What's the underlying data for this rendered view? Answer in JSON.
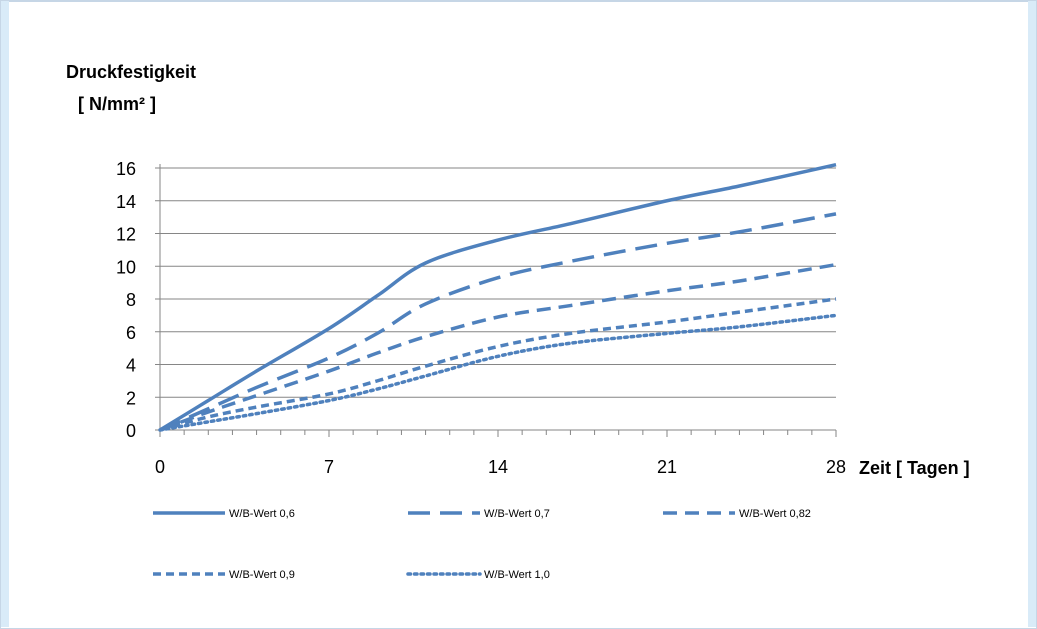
{
  "chart_data": {
    "type": "line",
    "title": "",
    "ylabel_line1": "Druckfestigkeit",
    "ylabel_line2": "[ N/mm² ]",
    "xlabel": "Zeit [ Tagen ]",
    "xlim": [
      0,
      28
    ],
    "ylim": [
      0,
      16
    ],
    "xticks": [
      0,
      7,
      14,
      21,
      28
    ],
    "yticks": [
      0,
      2,
      4,
      6,
      8,
      10,
      12,
      14,
      16
    ],
    "grid": "horizontal",
    "legend": "bottom",
    "color": "#4f81bd",
    "series": [
      {
        "name": "W/B-Wert 0,6",
        "dash": "solid",
        "x": [
          0,
          2,
          4,
          7,
          9,
          11,
          14,
          17,
          21,
          24,
          28
        ],
        "y": [
          0,
          1.8,
          3.6,
          6.2,
          8.2,
          10.2,
          11.6,
          12.6,
          14.0,
          14.9,
          16.2
        ]
      },
      {
        "name": "W/B-Wert 0,7",
        "dash": "longdash",
        "x": [
          0,
          2,
          4,
          7,
          9,
          11,
          14,
          17,
          21,
          24,
          28
        ],
        "y": [
          0,
          1.3,
          2.6,
          4.4,
          5.9,
          7.7,
          9.3,
          10.3,
          11.4,
          12.1,
          13.2
        ]
      },
      {
        "name": "W/B-Wert 0,82",
        "dash": "dash",
        "x": [
          0,
          2,
          4,
          7,
          9,
          11,
          14,
          17,
          21,
          24,
          28
        ],
        "y": [
          0,
          1.1,
          2.1,
          3.6,
          4.7,
          5.7,
          6.9,
          7.6,
          8.5,
          9.1,
          10.1
        ]
      },
      {
        "name": "W/B-Wert 0,9",
        "dash": "shortdash",
        "x": [
          0,
          2,
          4,
          7,
          9,
          11,
          14,
          17,
          21,
          24,
          28
        ],
        "y": [
          0,
          0.8,
          1.4,
          2.2,
          3.0,
          3.9,
          5.1,
          5.9,
          6.6,
          7.2,
          8.0
        ]
      },
      {
        "name": "W/B-Wert 1,0",
        "dash": "dot",
        "x": [
          0,
          2,
          4,
          7,
          9,
          11,
          14,
          17,
          21,
          24,
          28
        ],
        "y": [
          0,
          0.5,
          1.0,
          1.8,
          2.5,
          3.3,
          4.5,
          5.3,
          5.9,
          6.3,
          7.0
        ]
      }
    ]
  }
}
